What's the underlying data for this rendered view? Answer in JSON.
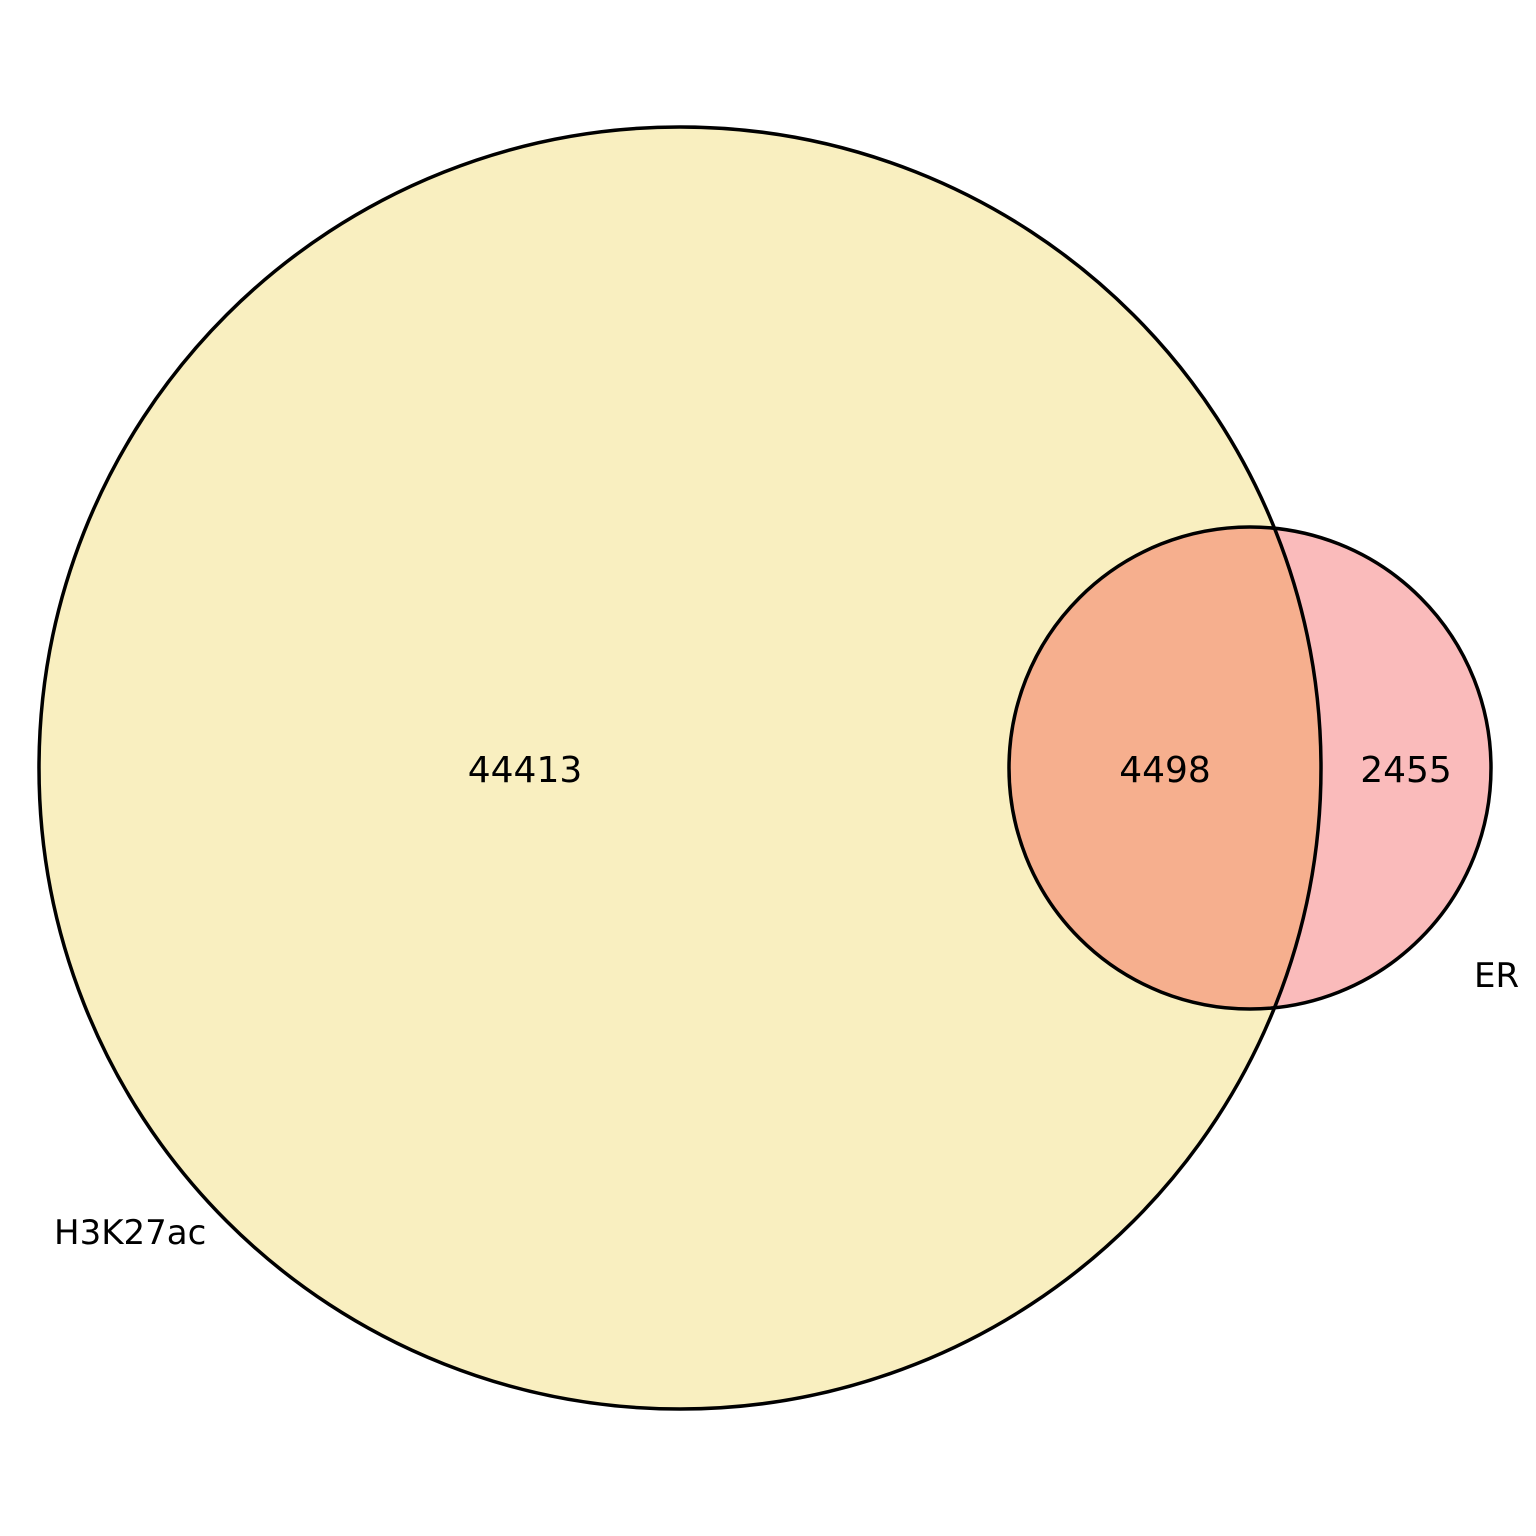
{
  "sets": [
    {
      "name": "H3K27ac",
      "only_count": "44413",
      "color": "#F9EFC0"
    },
    {
      "name": "ER",
      "only_count": "2455",
      "color": "#FABBBB"
    }
  ],
  "intersection": {
    "count": "4498",
    "color": "#F6AF8E"
  },
  "outline_color": "#000000"
}
